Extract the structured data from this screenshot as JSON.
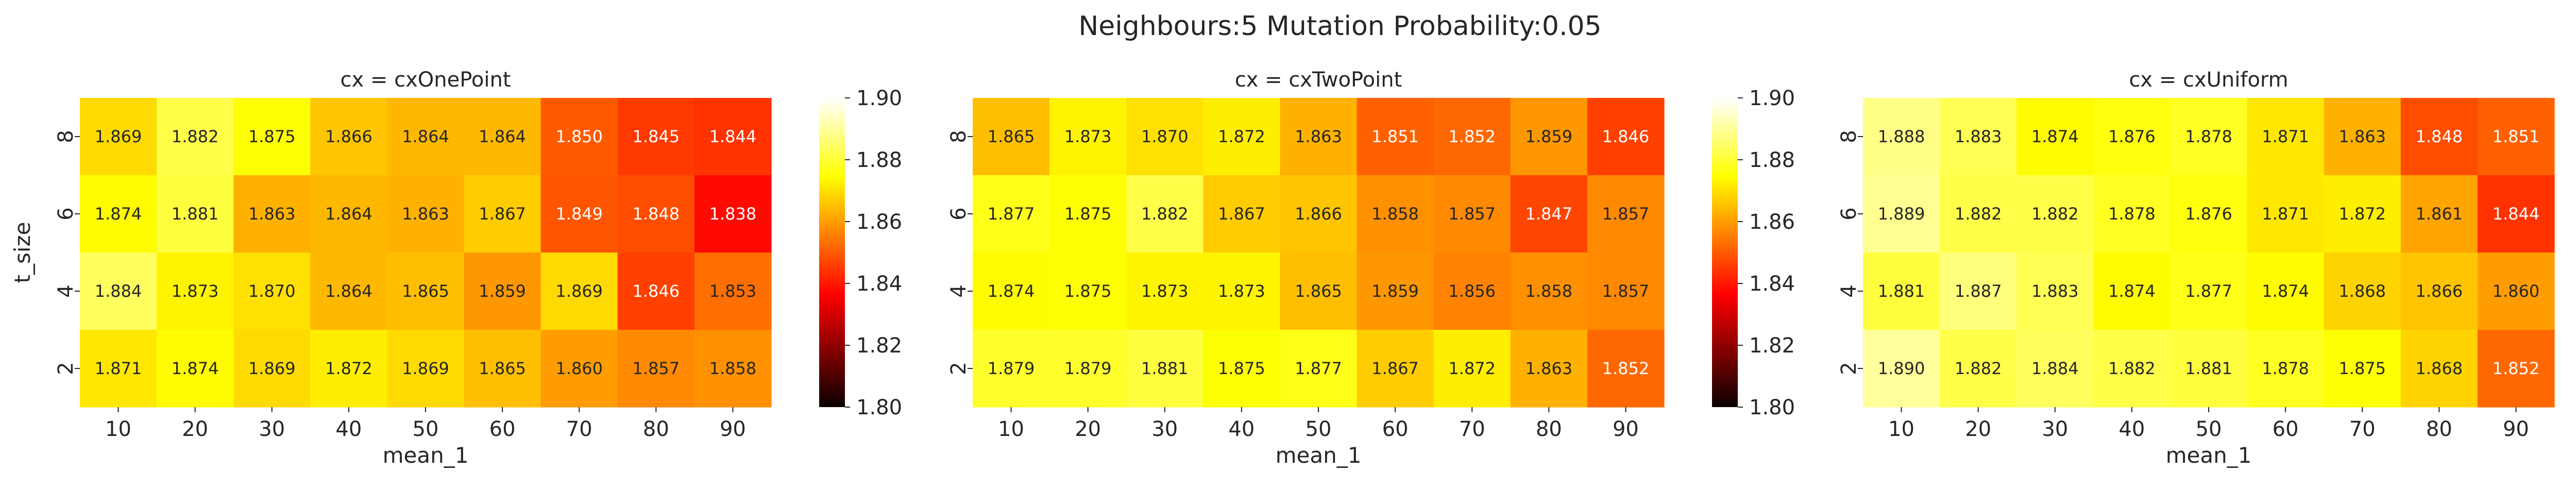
{
  "chart_data": {
    "type": "heatmap",
    "title": "Neighbours:5 Mutation Probability:0.05",
    "xlabel": "mean_1",
    "ylabel": "t_size",
    "x_categories": [
      "10",
      "20",
      "30",
      "40",
      "50",
      "60",
      "70",
      "80",
      "90"
    ],
    "y_categories": [
      "8",
      "6",
      "4",
      "2"
    ],
    "colormap": "hot",
    "colorbar": {
      "range": [
        1.8,
        1.9
      ],
      "ticks": [
        "1.90",
        "1.88",
        "1.86",
        "1.84",
        "1.82",
        "1.80"
      ]
    },
    "panels": [
      {
        "title": "cx = cxOnePoint",
        "values": [
          [
            1.869,
            1.882,
            1.875,
            1.866,
            1.864,
            1.864,
            1.85,
            1.845,
            1.844
          ],
          [
            1.874,
            1.881,
            1.863,
            1.864,
            1.863,
            1.867,
            1.849,
            1.848,
            1.838
          ],
          [
            1.884,
            1.873,
            1.87,
            1.864,
            1.865,
            1.859,
            1.869,
            1.846,
            1.853
          ],
          [
            1.871,
            1.874,
            1.869,
            1.872,
            1.869,
            1.865,
            1.86,
            1.857,
            1.858
          ]
        ],
        "labels": [
          [
            "1.869",
            "1.882",
            "1.875",
            "1.866",
            "1.864",
            "1.864",
            "1.850",
            "1.845",
            "1.844"
          ],
          [
            "1.874",
            "1.881",
            "1.863",
            "1.864",
            "1.863",
            "1.867",
            "1.849",
            "1.848",
            "1.838"
          ],
          [
            "1.884",
            "1.873",
            "1.870",
            "1.864",
            "1.865",
            "1.859",
            "1.869",
            "1.846",
            "1.853"
          ],
          [
            "1.871",
            "1.874",
            "1.869",
            "1.872",
            "1.869",
            "1.865",
            "1.860",
            "1.857",
            "1.858"
          ]
        ]
      },
      {
        "title": "cx = cxTwoPoint",
        "values": [
          [
            1.865,
            1.873,
            1.87,
            1.872,
            1.863,
            1.851,
            1.852,
            1.859,
            1.846
          ],
          [
            1.877,
            1.875,
            1.882,
            1.867,
            1.866,
            1.858,
            1.857,
            1.847,
            1.857
          ],
          [
            1.874,
            1.875,
            1.873,
            1.873,
            1.865,
            1.859,
            1.856,
            1.858,
            1.857
          ],
          [
            1.879,
            1.879,
            1.881,
            1.875,
            1.877,
            1.867,
            1.872,
            1.863,
            1.852
          ]
        ],
        "labels": [
          [
            "1.865",
            "1.873",
            "1.870",
            "1.872",
            "1.863",
            "1.851",
            "1.852",
            "1.859",
            "1.846"
          ],
          [
            "1.877",
            "1.875",
            "1.882",
            "1.867",
            "1.866",
            "1.858",
            "1.857",
            "1.847",
            "1.857"
          ],
          [
            "1.874",
            "1.875",
            "1.873",
            "1.873",
            "1.865",
            "1.859",
            "1.856",
            "1.858",
            "1.857"
          ],
          [
            "1.879",
            "1.879",
            "1.881",
            "1.875",
            "1.877",
            "1.867",
            "1.872",
            "1.863",
            "1.852"
          ]
        ]
      },
      {
        "title": "cx = cxUniform",
        "values": [
          [
            1.888,
            1.883,
            1.874,
            1.876,
            1.878,
            1.871,
            1.863,
            1.848,
            1.851
          ],
          [
            1.889,
            1.882,
            1.882,
            1.878,
            1.876,
            1.871,
            1.872,
            1.861,
            1.844
          ],
          [
            1.881,
            1.887,
            1.883,
            1.874,
            1.877,
            1.874,
            1.868,
            1.866,
            1.86
          ],
          [
            1.89,
            1.882,
            1.884,
            1.882,
            1.881,
            1.878,
            1.875,
            1.868,
            1.852
          ]
        ],
        "labels": [
          [
            "1.888",
            "1.883",
            "1.874",
            "1.876",
            "1.878",
            "1.871",
            "1.863",
            "1.848",
            "1.851"
          ],
          [
            "1.889",
            "1.882",
            "1.882",
            "1.878",
            "1.876",
            "1.871",
            "1.872",
            "1.861",
            "1.844"
          ],
          [
            "1.881",
            "1.887",
            "1.883",
            "1.874",
            "1.877",
            "1.874",
            "1.868",
            "1.866",
            "1.860"
          ],
          [
            "1.890",
            "1.882",
            "1.884",
            "1.882",
            "1.881",
            "1.878",
            "1.875",
            "1.868",
            "1.852"
          ]
        ]
      }
    ]
  }
}
